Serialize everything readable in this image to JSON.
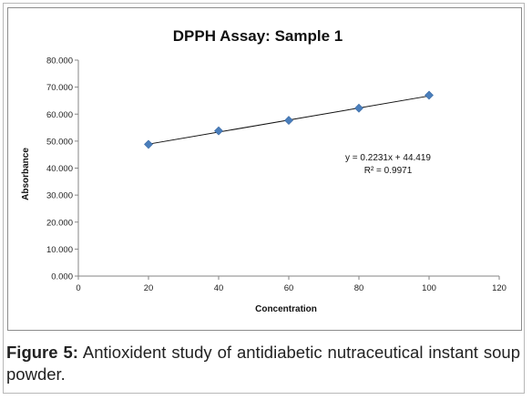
{
  "chart_data": {
    "type": "scatter",
    "title": "DPPH Assay: Sample 1",
    "xlabel": "Concentration",
    "ylabel": "Absorbance",
    "xlim": [
      0,
      120
    ],
    "ylim": [
      0,
      80
    ],
    "x_ticks": [
      "0",
      "20",
      "40",
      "60",
      "80",
      "100",
      "120"
    ],
    "y_ticks": [
      "0.000",
      "10.000",
      "20.000",
      "30.000",
      "40.000",
      "50.000",
      "60.000",
      "70.000",
      "80.000"
    ],
    "x": [
      20,
      40,
      60,
      80,
      100
    ],
    "y": [
      48.8,
      53.8,
      57.7,
      62.2,
      67.0
    ],
    "marker_color": "#4a7ebb",
    "trendline": {
      "slope": 0.2231,
      "intercept": 44.419,
      "equation": "y = 0.2231x + 44.419",
      "r2": "R² = 0.9971"
    },
    "grid": false,
    "legend": "none"
  },
  "caption": {
    "label": "Figure 5:",
    "text": " Antioxident study of antidiabetic nutraceutical instant soup powder."
  }
}
